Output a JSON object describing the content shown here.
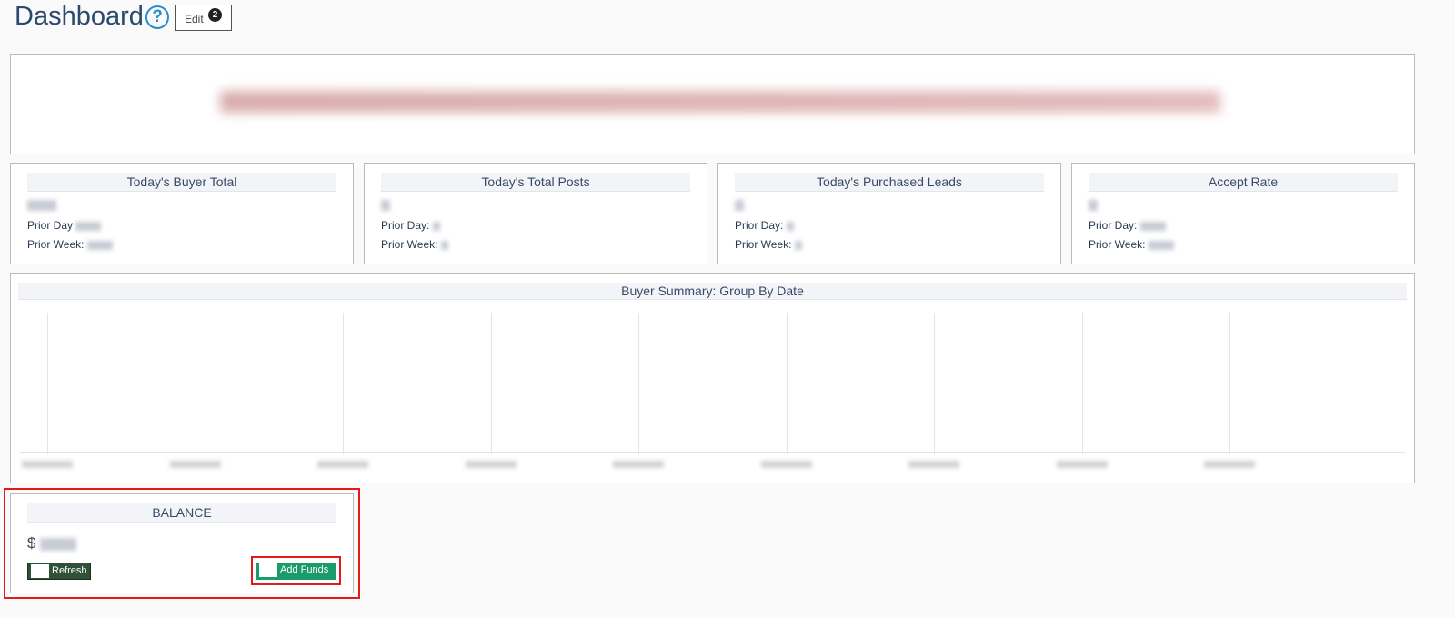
{
  "header": {
    "title": "Dashboard",
    "help_icon": "question-circle-icon",
    "edit_label": "Edit",
    "edit_badge": "2"
  },
  "stats": [
    {
      "title": "Today's Buyer Total",
      "prior_day_label": "Prior Day",
      "prior_week_label": "Prior Week:"
    },
    {
      "title": "Today's Total Posts",
      "prior_day_label": "Prior Day:",
      "prior_week_label": "Prior Week:"
    },
    {
      "title": "Today's Purchased Leads",
      "prior_day_label": "Prior Day:",
      "prior_week_label": "Prior Week:"
    },
    {
      "title": "Accept Rate",
      "prior_day_label": "Prior Day:",
      "prior_week_label": "Prior Week:"
    }
  ],
  "chart": {
    "title": "Buyer Summary: Group By Date"
  },
  "chart_data": {
    "type": "line",
    "title": "Buyer Summary: Group By Date",
    "categories_count": 9,
    "series": [],
    "grid": true
  },
  "balance": {
    "title": "BALANCE",
    "currency": "$",
    "refresh_label": "Refresh",
    "add_funds_label": "Add Funds",
    "colors": {
      "refresh": "#2f5236",
      "add_funds": "#1a9b6c",
      "highlight": "#e01b1b"
    }
  }
}
